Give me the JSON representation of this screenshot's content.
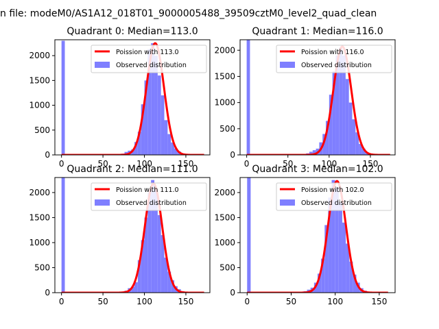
{
  "figure_title": "n file: modeM0/AS1A12_018T01_9000005488_39509cztM0_level2_quad_clean",
  "colors": {
    "curve": "#ff0000",
    "hist": "#7f7fff",
    "axis": "#000000"
  },
  "chart_data": [
    {
      "type": "bar",
      "title": "Quadrant 0: Median=113.0",
      "median": 113.0,
      "xlim": [
        -8,
        179
      ],
      "ylim": [
        0,
        2320
      ],
      "xticks": [
        0,
        50,
        100,
        150
      ],
      "yticks": [
        0,
        500,
        1000,
        1500,
        2000
      ],
      "bin_width": 4,
      "series": [
        {
          "name": "Poission with 113.0",
          "kind": "poisson",
          "mean": 113.0,
          "peak": 2250,
          "sigma": 10.6,
          "x_range": [
            0,
            172
          ]
        },
        {
          "name": "Observed distribution",
          "kind": "histogram",
          "bin_starts": [
            0,
            64,
            68,
            72,
            76,
            80,
            84,
            88,
            92,
            96,
            100,
            104,
            108,
            112,
            116,
            120,
            124,
            128,
            132,
            136,
            140,
            144,
            148,
            152
          ],
          "values": [
            2300,
            5,
            15,
            25,
            60,
            85,
            110,
            260,
            470,
            1020,
            1500,
            2130,
            2250,
            2000,
            1600,
            1200,
            700,
            420,
            250,
            130,
            70,
            30,
            12,
            4
          ]
        }
      ]
    },
    {
      "type": "bar",
      "title": "Quadrant 1: Median=116.0",
      "median": 116.0,
      "xlim": [
        -8,
        180
      ],
      "ylim": [
        0,
        2200
      ],
      "xticks": [
        0,
        50,
        100,
        150
      ],
      "yticks": [
        0,
        500,
        1000,
        1500,
        2000
      ],
      "bin_width": 4,
      "series": [
        {
          "name": "Poission with 116.0",
          "kind": "poisson",
          "mean": 116.0,
          "peak": 2070,
          "sigma": 10.8,
          "x_range": [
            0,
            174
          ]
        },
        {
          "name": "Observed distribution",
          "kind": "histogram",
          "bin_starts": [
            0,
            64,
            68,
            72,
            76,
            80,
            84,
            88,
            92,
            96,
            100,
            104,
            108,
            112,
            116,
            120,
            124,
            128,
            132,
            136,
            140,
            144,
            148,
            152
          ],
          "values": [
            2200,
            5,
            15,
            30,
            60,
            90,
            120,
            240,
            400,
            650,
            1150,
            1600,
            1900,
            2050,
            1900,
            1450,
            1000,
            680,
            430,
            210,
            120,
            50,
            20,
            5
          ]
        }
      ]
    },
    {
      "type": "bar",
      "title": "Quadrant 2: Median=111.0",
      "median": 111.0,
      "xlim": [
        -8,
        179
      ],
      "ylim": [
        0,
        2300
      ],
      "xticks": [
        0,
        50,
        100,
        150
      ],
      "yticks": [
        0,
        500,
        1000,
        1500,
        2000
      ],
      "bin_width": 4,
      "series": [
        {
          "name": "Poission with 111.0",
          "kind": "poisson",
          "mean": 111.0,
          "peak": 2180,
          "sigma": 10.5,
          "x_range": [
            0,
            172
          ]
        },
        {
          "name": "Observed distribution",
          "kind": "histogram",
          "bin_starts": [
            0,
            68,
            72,
            76,
            80,
            84,
            88,
            92,
            96,
            100,
            104,
            108,
            112,
            116,
            120,
            124,
            128,
            132,
            136,
            140,
            144,
            148
          ],
          "values": [
            2300,
            10,
            20,
            40,
            90,
            120,
            210,
            650,
            1050,
            1500,
            2000,
            2250,
            2050,
            1550,
            1150,
            700,
            420,
            250,
            130,
            70,
            30,
            10
          ]
        }
      ]
    },
    {
      "type": "bar",
      "title": "Quadrant 3: Median=102.0",
      "median": 102.0,
      "xlim": [
        -8,
        168
      ],
      "ylim": [
        0,
        2300
      ],
      "xticks": [
        0,
        50,
        100,
        150
      ],
      "yticks": [
        0,
        500,
        1000,
        1500,
        2000
      ],
      "bin_width": 4,
      "series": [
        {
          "name": "Poission with 102.0",
          "kind": "poisson",
          "mean": 102.0,
          "peak": 2230,
          "sigma": 10.1,
          "x_range": [
            0,
            160
          ]
        },
        {
          "name": "Observed distribution",
          "kind": "histogram",
          "bin_starts": [
            0,
            56,
            60,
            64,
            68,
            72,
            76,
            80,
            84,
            88,
            92,
            96,
            100,
            104,
            108,
            112,
            116,
            120,
            124,
            128,
            132,
            136
          ],
          "values": [
            2300,
            5,
            15,
            30,
            60,
            100,
            200,
            380,
            680,
            1350,
            1900,
            2250,
            2100,
            1800,
            1400,
            980,
            620,
            360,
            200,
            90,
            40,
            15
          ]
        }
      ]
    }
  ]
}
